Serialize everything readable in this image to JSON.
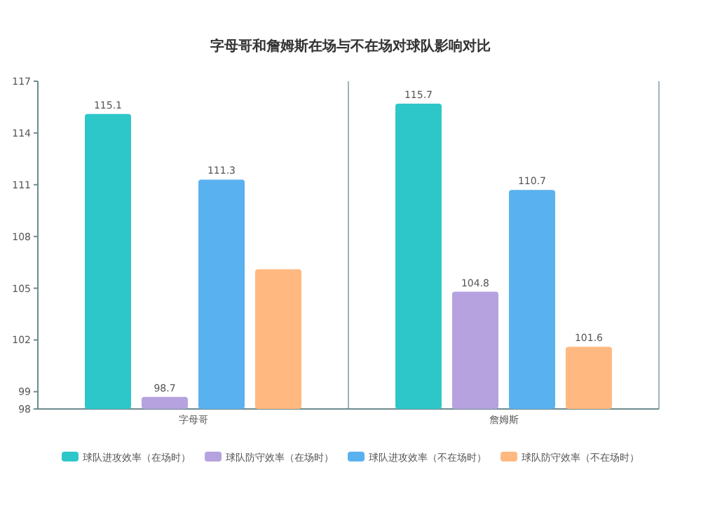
{
  "chart_data": {
    "type": "bar",
    "title": "字母哥和詹姆斯在场与不在场对球队影响对比",
    "categories": [
      "字母哥",
      "詹姆斯"
    ],
    "series": [
      {
        "name": "球队进攻效率（在场时）",
        "color": "#2ec7c9",
        "values": [
          115.1,
          115.7
        ],
        "value_labels": [
          "115.1",
          "115.7"
        ]
      },
      {
        "name": "球队防守效率（在场时）",
        "color": "#b6a2de",
        "values": [
          98.7,
          104.8
        ],
        "value_labels": [
          "98.7",
          "104.8"
        ]
      },
      {
        "name": "球队进攻效率（不在场时）",
        "color": "#5ab1ef",
        "values": [
          111.3,
          110.7
        ],
        "value_labels": [
          "111.3",
          "110.7"
        ]
      },
      {
        "name": "球队防守效率（不在场时）",
        "color": "#ffb980",
        "values": [
          106.1,
          101.6
        ],
        "value_labels": [
          null,
          "101.6"
        ]
      }
    ],
    "ylim": [
      98,
      117
    ],
    "yticks": [
      98,
      99,
      102,
      105,
      108,
      111,
      114,
      117
    ],
    "grid": "x",
    "legend": "bottom"
  }
}
